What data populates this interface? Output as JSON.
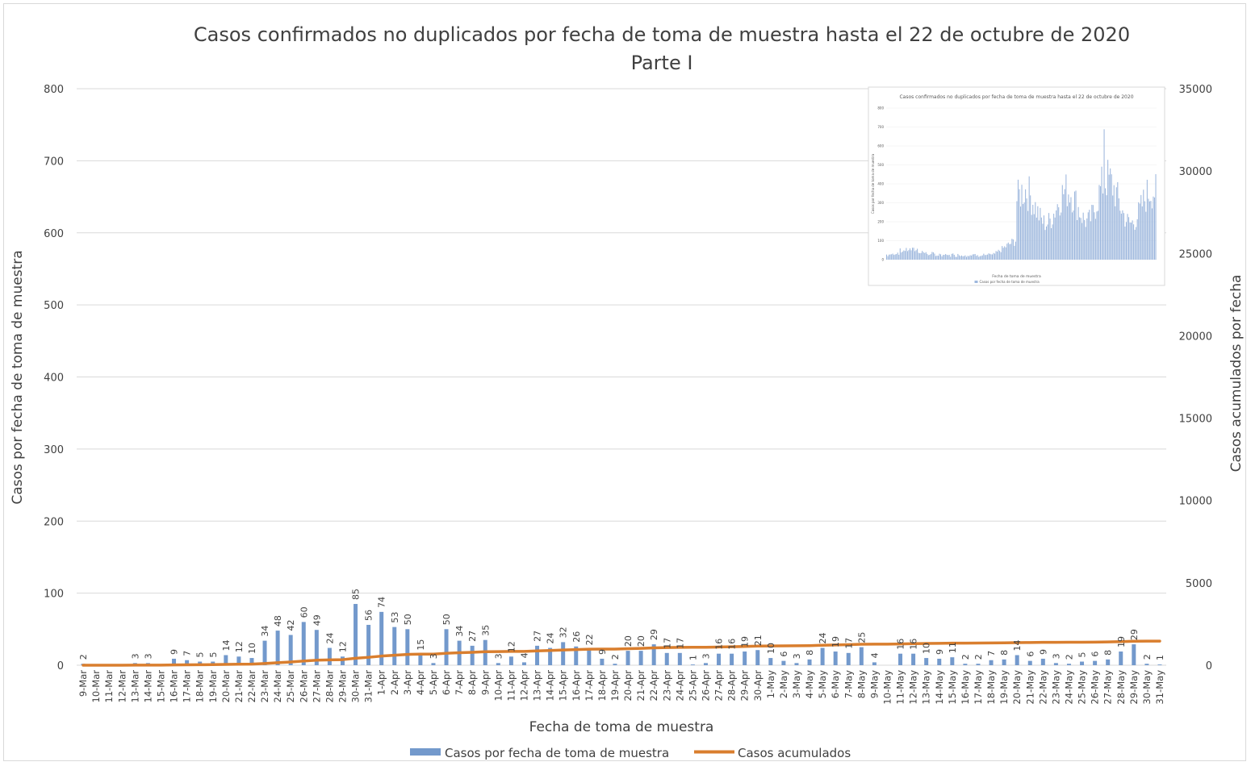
{
  "chart_data": {
    "type": "bar",
    "title": "Casos confirmados no duplicados por fecha de toma de muestra hasta el 22 de octubre de 2020",
    "subtitle": "Parte I",
    "xlabel": "Fecha de toma de muestra",
    "ylabel": "Casos por fecha de toma de muestra",
    "y2label": "Casos acumulados por fecha",
    "ylim": [
      0,
      800
    ],
    "y2lim": [
      0,
      35000
    ],
    "yticks": [
      "0",
      "100",
      "200",
      "300",
      "400",
      "500",
      "600",
      "700",
      "800"
    ],
    "y2ticks": [
      "0",
      "5000",
      "10000",
      "15000",
      "20000",
      "25000",
      "30000",
      "35000"
    ],
    "grid": true,
    "legend_position": "bottom",
    "categories": [
      "9-Mar",
      "10-Mar",
      "11-Mar",
      "12-Mar",
      "13-Mar",
      "14-Mar",
      "15-Mar",
      "16-Mar",
      "17-Mar",
      "18-Mar",
      "19-Mar",
      "20-Mar",
      "21-Mar",
      "22-Mar",
      "23-Mar",
      "24-Mar",
      "25-Mar",
      "26-Mar",
      "27-Mar",
      "28-Mar",
      "29-Mar",
      "30-Mar",
      "31-Mar",
      "1-Apr",
      "2-Apr",
      "3-Apr",
      "4-Apr",
      "5-Apr",
      "6-Apr",
      "7-Apr",
      "8-Apr",
      "9-Apr",
      "10-Apr",
      "11-Apr",
      "12-Apr",
      "13-Apr",
      "14-Apr",
      "15-Apr",
      "16-Apr",
      "17-Apr",
      "18-Apr",
      "19-Apr",
      "20-Apr",
      "21-Apr",
      "22-Apr",
      "23-Apr",
      "24-Apr",
      "25-Apr",
      "26-Apr",
      "27-Apr",
      "28-Apr",
      "29-Apr",
      "30-Apr",
      "1-May",
      "2-May",
      "3-May",
      "4-May",
      "5-May",
      "6-May",
      "7-May",
      "8-May",
      "9-May",
      "10-May",
      "11-May",
      "12-May",
      "13-May",
      "14-May",
      "15-May",
      "16-May",
      "17-May",
      "18-May",
      "19-May",
      "20-May",
      "21-May",
      "22-May",
      "23-May",
      "24-May",
      "25-May",
      "26-May",
      "27-May",
      "28-May",
      "29-May",
      "30-May",
      "31-May"
    ],
    "series": [
      {
        "name": "Casos por fecha de toma de muestra",
        "type": "bar",
        "color": "#7399cc",
        "axis": "left",
        "values": [
          2,
          0,
          0,
          0,
          3,
          3,
          0,
          9,
          7,
          5,
          5,
          14,
          12,
          10,
          34,
          48,
          42,
          60,
          49,
          24,
          12,
          85,
          56,
          74,
          53,
          50,
          15,
          3,
          50,
          34,
          27,
          35,
          3,
          12,
          4,
          27,
          24,
          32,
          26,
          22,
          9,
          2,
          20,
          20,
          29,
          17,
          17,
          1,
          3,
          16,
          16,
          19,
          21,
          10,
          6,
          3,
          8,
          24,
          19,
          17,
          25,
          4,
          0,
          16,
          16,
          10,
          9,
          11,
          2,
          2,
          7,
          8,
          14,
          6,
          9,
          3,
          2,
          5,
          6,
          8,
          19,
          29,
          2,
          1
        ],
        "labels": [
          "2",
          "",
          "",
          "",
          "3",
          "3",
          "",
          "9",
          "7",
          "5",
          "5",
          "14",
          "12",
          "10",
          "34",
          "48",
          "42",
          "60",
          "49",
          "24",
          "12",
          "85",
          "56",
          "74",
          "53",
          "50",
          "15",
          "3",
          "50",
          "34",
          "27",
          "35",
          "3",
          "12",
          "4",
          "27",
          "24",
          "32",
          "26",
          "22",
          "9",
          "2",
          "20",
          "20",
          "29",
          "17",
          "17",
          "1",
          "3",
          "16",
          "16",
          "19",
          "21",
          "10",
          "6",
          "3",
          "8",
          "24",
          "19",
          "17",
          "25",
          "4",
          "",
          "16",
          "16",
          "10",
          "9",
          "11",
          "2",
          "2",
          "7",
          "8",
          "14",
          "6",
          "9",
          "3",
          "2",
          "5",
          "6",
          "8",
          "19",
          "29",
          "2",
          "1"
        ]
      },
      {
        "name": "Casos acumulados",
        "type": "line",
        "color": "#d97e2e",
        "axis": "right",
        "values": [
          2,
          2,
          2,
          2,
          5,
          8,
          8,
          17,
          24,
          29,
          34,
          48,
          60,
          70,
          104,
          152,
          194,
          254,
          303,
          327,
          339,
          424,
          480,
          554,
          607,
          657,
          672,
          675,
          725,
          759,
          786,
          821,
          824,
          836,
          840,
          867,
          891,
          923,
          949,
          971,
          980,
          982,
          1002,
          1022,
          1051,
          1068,
          1085,
          1086,
          1089,
          1105,
          1121,
          1140,
          1161,
          1171,
          1177,
          1180,
          1188,
          1212,
          1231,
          1248,
          1273,
          1277,
          1277,
          1293,
          1309,
          1319,
          1328,
          1339,
          1341,
          1343,
          1350,
          1358,
          1372,
          1378,
          1387,
          1390,
          1392,
          1397,
          1403,
          1411,
          1430,
          1459,
          1461,
          1462
        ]
      }
    ]
  },
  "inset": {
    "title": "Casos confirmados no duplicados por fecha de toma de muestra hasta el 22 de octubre de 2020",
    "xlabel": "Fecha de toma de muestra",
    "ylabel": "Casos por fecha de toma de muestra",
    "legend": "Casos por fecha de toma de muestra",
    "yticks": [
      "0",
      "100",
      "200",
      "300",
      "400",
      "500",
      "600",
      "700",
      "800"
    ],
    "color": "#9db7dd"
  }
}
